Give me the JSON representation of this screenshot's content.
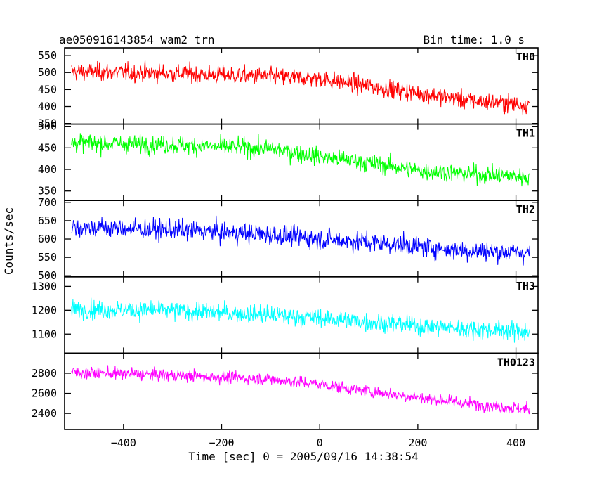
{
  "chart_data": {
    "type": "line",
    "title": "ae050916143854_wam2_trn",
    "subtitle": "Bin time: 1.0 s",
    "xlabel": "Time [sec] 0 = 2005/09/16 14:38:54",
    "ylabel": "Counts/sec",
    "xlim": [
      -520,
      445
    ],
    "x_ticks": [
      -400,
      -200,
      0,
      200,
      400
    ],
    "x_tick_labels": [
      "−400",
      "−200",
      "0",
      "200",
      "400"
    ],
    "x_range": [
      -506,
      428
    ],
    "bin_time": 1.0,
    "panels": [
      {
        "name": "TH0",
        "color": "#ff0000",
        "ylim": [
          348,
          573
        ],
        "yticks": [
          350,
          400,
          450,
          500,
          550
        ],
        "ytick_labels": [
          "350",
          "400",
          "450",
          "500",
          "550"
        ],
        "trend": [
          [
            -506,
            503
          ],
          [
            -300,
            498
          ],
          [
            -100,
            488
          ],
          [
            0,
            482
          ],
          [
            100,
            460
          ],
          [
            200,
            440
          ],
          [
            300,
            418
          ],
          [
            428,
            405
          ]
        ],
        "noise": 24
      },
      {
        "name": "TH1",
        "color": "#00ff00",
        "ylim": [
          328,
          505
        ],
        "yticks": [
          350,
          400,
          450,
          500
        ],
        "ytick_labels": [
          "350",
          "400",
          "450",
          "500"
        ],
        "trend": [
          [
            -506,
            462
          ],
          [
            -300,
            457
          ],
          [
            -100,
            448
          ],
          [
            0,
            430
          ],
          [
            100,
            415
          ],
          [
            200,
            398
          ],
          [
            300,
            390
          ],
          [
            428,
            382
          ]
        ],
        "noise": 19
      },
      {
        "name": "TH2",
        "color": "#0000ff",
        "ylim": [
          497,
          705
        ],
        "yticks": [
          500,
          550,
          600,
          650,
          700
        ],
        "ytick_labels": [
          "500",
          "550",
          "600",
          "650",
          "700"
        ],
        "trend": [
          [
            -506,
            632
          ],
          [
            -300,
            625
          ],
          [
            -100,
            612
          ],
          [
            0,
            600
          ],
          [
            100,
            592
          ],
          [
            200,
            580
          ],
          [
            300,
            568
          ],
          [
            428,
            563
          ]
        ],
        "noise": 25
      },
      {
        "name": "TH3",
        "color": "#00ffff",
        "ylim": [
          1020,
          1340
        ],
        "yticks": [
          1100,
          1200,
          1300
        ],
        "ytick_labels": [
          "1100",
          "1200",
          "1300"
        ],
        "trend": [
          [
            -506,
            1205
          ],
          [
            -300,
            1198
          ],
          [
            -100,
            1180
          ],
          [
            0,
            1168
          ],
          [
            100,
            1150
          ],
          [
            200,
            1135
          ],
          [
            300,
            1122
          ],
          [
            428,
            1110
          ]
        ],
        "noise": 35
      },
      {
        "name": "TH0123",
        "color": "#ff00ff",
        "ylim": [
          2240,
          3000
        ],
        "yticks": [
          2400,
          2600,
          2800
        ],
        "ytick_labels": [
          "2400",
          "2600",
          "2800"
        ],
        "trend": [
          [
            -506,
            2810
          ],
          [
            -300,
            2780
          ],
          [
            -100,
            2740
          ],
          [
            0,
            2690
          ],
          [
            100,
            2620
          ],
          [
            200,
            2560
          ],
          [
            300,
            2500
          ],
          [
            428,
            2440
          ]
        ],
        "noise": 55
      }
    ]
  }
}
